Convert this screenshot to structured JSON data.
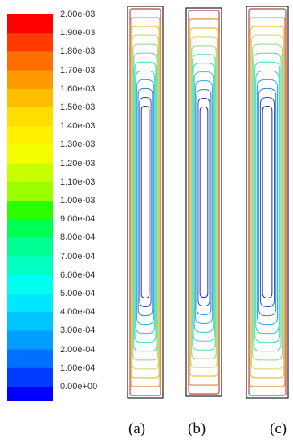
{
  "colorbar": {
    "labels": [
      "2.00e-03",
      "1.90e-03",
      "1.80e-03",
      "1.70e-03",
      "1.60e-03",
      "1.50e-03",
      "1.40e-03",
      "1.30e-03",
      "1.20e-03",
      "1.10e-03",
      "1.00e-03",
      "9.00e-04",
      "8.00e-04",
      "7.00e-04",
      "6.00e-04",
      "5.00e-04",
      "4.00e-04",
      "3.00e-04",
      "2.00e-04",
      "1.00e-04",
      "0.00e+00"
    ],
    "colors": [
      "#ff0000",
      "#ff3a00",
      "#ff6e00",
      "#ff9a00",
      "#ffbe00",
      "#ffdd00",
      "#fff200",
      "#f3ff00",
      "#c8ff00",
      "#9aff00",
      "#2eff00",
      "#00ff52",
      "#00ff92",
      "#00ffc3",
      "#00ffee",
      "#00e8ff",
      "#00c6ff",
      "#009fff",
      "#0070ff",
      "#003cff",
      "#0000ff"
    ]
  },
  "panels": [
    {
      "label": "(a)"
    },
    {
      "label": "(b)"
    },
    {
      "label": "(c)"
    }
  ],
  "contour_colors": [
    "#1f2f9a",
    "#2a50b8",
    "#2f7fcf",
    "#33a6d8",
    "#2fc7d4",
    "#3ad8bf",
    "#58d8a6",
    "#8fd884",
    "#c7d868",
    "#e5c85a",
    "#e59a52",
    "#c96060"
  ]
}
